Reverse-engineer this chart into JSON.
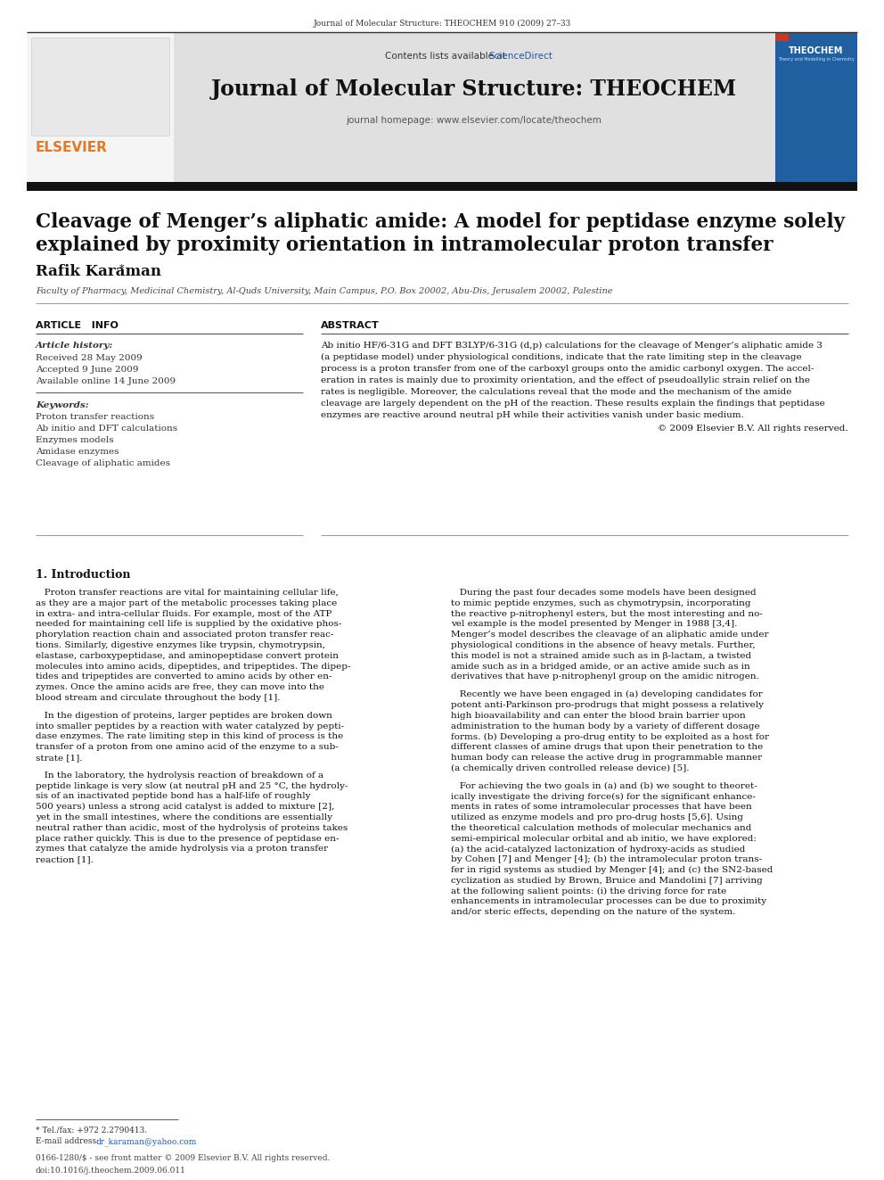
{
  "page_bg": "#ffffff",
  "top_citation": "Journal of Molecular Structure: THEOCHEM 910 (2009) 27–33",
  "header_bg": "#e0e0e0",
  "header_contents_text": "Contents lists available at ",
  "header_sciencedirect": "ScienceDirect",
  "header_sciencedirect_color": "#2255aa",
  "journal_title": "Journal of Molecular Structure: THEOCHEM",
  "journal_homepage": "journal homepage: www.elsevier.com/locate/theochem",
  "dark_bar_color": "#1a1a1a",
  "article_title_line1": "Cleavage of Menger’s aliphatic amide: A model for peptidase enzyme solely",
  "article_title_line2": "explained by proximity orientation in intramolecular proton transfer",
  "author": "Rafik Karaman",
  "author_asterisk": "*",
  "affiliation": "Faculty of Pharmacy, Medicinal Chemistry, Al-Quds University, Main Campus, P.O. Box 20002, Abu-Dis, Jerusalem 20002, Palestine",
  "section_article_info": "ARTICLE   INFO",
  "section_abstract": "ABSTRACT",
  "article_history_label": "Article history:",
  "received": "Received 28 May 2009",
  "accepted": "Accepted 9 June 2009",
  "available": "Available online 14 June 2009",
  "keywords_label": "Keywords:",
  "keywords": [
    "Proton transfer reactions",
    "Ab initio and DFT calculations",
    "Enzymes models",
    "Amidase enzymes",
    "Cleavage of aliphatic amides"
  ],
  "abstract_line1": "Ab initio HF/6-31G and DFT B3LYP/6-31G (d,p) calculations for the cleavage of Menger’s aliphatic amide 3",
  "abstract_line2": "(a peptidase model) under physiological conditions, indicate that the rate limiting step in the cleavage",
  "abstract_line3": "process is a proton transfer from one of the carboxyl groups onto the amidic carbonyl oxygen. The accel-",
  "abstract_line4": "eration in rates is mainly due to proximity orientation, and the effect of pseudoallylic strain relief on the",
  "abstract_line5": "rates is negligible. Moreover, the calculations reveal that the mode and the mechanism of the amide",
  "abstract_line6": "cleavage are largely dependent on the pH of the reaction. These results explain the findings that peptidase",
  "abstract_line7": "enzymes are reactive around neutral pH while their activities vanish under basic medium.",
  "copyright": "© 2009 Elsevier B.V. All rights reserved.",
  "intro_heading": "1. Introduction",
  "left_col_paras": [
    [
      "   Proton transfer reactions are vital for maintaining cellular life,",
      "as they are a major part of the metabolic processes taking place",
      "in extra- and intra-cellular fluids. For example, most of the ATP",
      "needed for maintaining cell life is supplied by the oxidative phos-",
      "phorylation reaction chain and associated proton transfer reac-",
      "tions. Similarly, digestive enzymes like trypsin, chymotrypsin,",
      "elastase, carboxypeptidase, and aminopeptidase convert protein",
      "molecules into amino acids, dipeptides, and tripeptides. The dipep-",
      "tides and tripeptides are converted to amino acids by other en-",
      "zymes. Once the amino acids are free, they can move into the",
      "blood stream and circulate throughout the body [1]."
    ],
    [
      "   In the digestion of proteins, larger peptides are broken down",
      "into smaller peptides by a reaction with water catalyzed by pepti-",
      "dase enzymes. The rate limiting step in this kind of process is the",
      "transfer of a proton from one amino acid of the enzyme to a sub-",
      "strate [1]."
    ],
    [
      "   In the laboratory, the hydrolysis reaction of breakdown of a",
      "peptide linkage is very slow (at neutral pH and 25 °C, the hydroly-",
      "sis of an inactivated peptide bond has a half-life of roughly",
      "500 years) unless a strong acid catalyst is added to mixture [2],",
      "yet in the small intestines, where the conditions are essentially",
      "neutral rather than acidic, most of the hydrolysis of proteins takes",
      "place rather quickly. This is due to the presence of peptidase en-",
      "zymes that catalyze the amide hydrolysis via a proton transfer",
      "reaction [1]."
    ]
  ],
  "right_col_paras": [
    [
      "   During the past four decades some models have been designed",
      "to mimic peptide enzymes, such as chymotrypsin, incorporating",
      "the reactive p-nitrophenyl esters, but the most interesting and no-",
      "vel example is the model presented by Menger in 1988 [3,4].",
      "Menger’s model describes the cleavage of an aliphatic amide under",
      "physiological conditions in the absence of heavy metals. Further,",
      "this model is not a strained amide such as in β-lactam, a twisted",
      "amide such as in a bridged amide, or an active amide such as in",
      "derivatives that have p-nitrophenyl group on the amidic nitrogen."
    ],
    [
      "   Recently we have been engaged in (a) developing candidates for",
      "potent anti-Parkinson pro-prodrugs that might possess a relatively",
      "high bioavailability and can enter the blood brain barrier upon",
      "administration to the human body by a variety of different dosage",
      "forms. (b) Developing a pro-drug entity to be exploited as a host for",
      "different classes of amine drugs that upon their penetration to the",
      "human body can release the active drug in programmable manner",
      "(a chemically driven controlled release device) [5]."
    ],
    [
      "   For achieving the two goals in (a) and (b) we sought to theoret-",
      "ically investigate the driving force(s) for the significant enhance-",
      "ments in rates of some intramolecular processes that have been",
      "utilized as enzyme models and pro pro-drug hosts [5,6]. Using",
      "the theoretical calculation methods of molecular mechanics and",
      "semi-empirical molecular orbital and ab initio, we have explored:",
      "(a) the acid-catalyzed lactonization of hydroxy-acids as studied",
      "by Cohen [7] and Menger [4]; (b) the intramolecular proton trans-",
      "fer in rigid systems as studied by Menger [4]; and (c) the SN2-based",
      "cyclization as studied by Brown, Bruice and Mandolini [7] arriving",
      "at the following salient points: (i) the driving force for rate",
      "enhancements in intramolecular processes can be due to proximity",
      "and/or steric effects, depending on the nature of the system."
    ]
  ],
  "footnote_tel": "* Tel./fax: +972 2.2790413.",
  "footnote_email_label": "E-mail address: ",
  "footnote_email": "dr_karaman@yahoo.com",
  "footnote_email_color": "#2255aa",
  "bottom_text1": "0166-1280/$ - see front matter © 2009 Elsevier B.V. All rights reserved.",
  "bottom_text2": "doi:10.1016/j.theochem.2009.06.011",
  "elsevier_color": "#e87722"
}
